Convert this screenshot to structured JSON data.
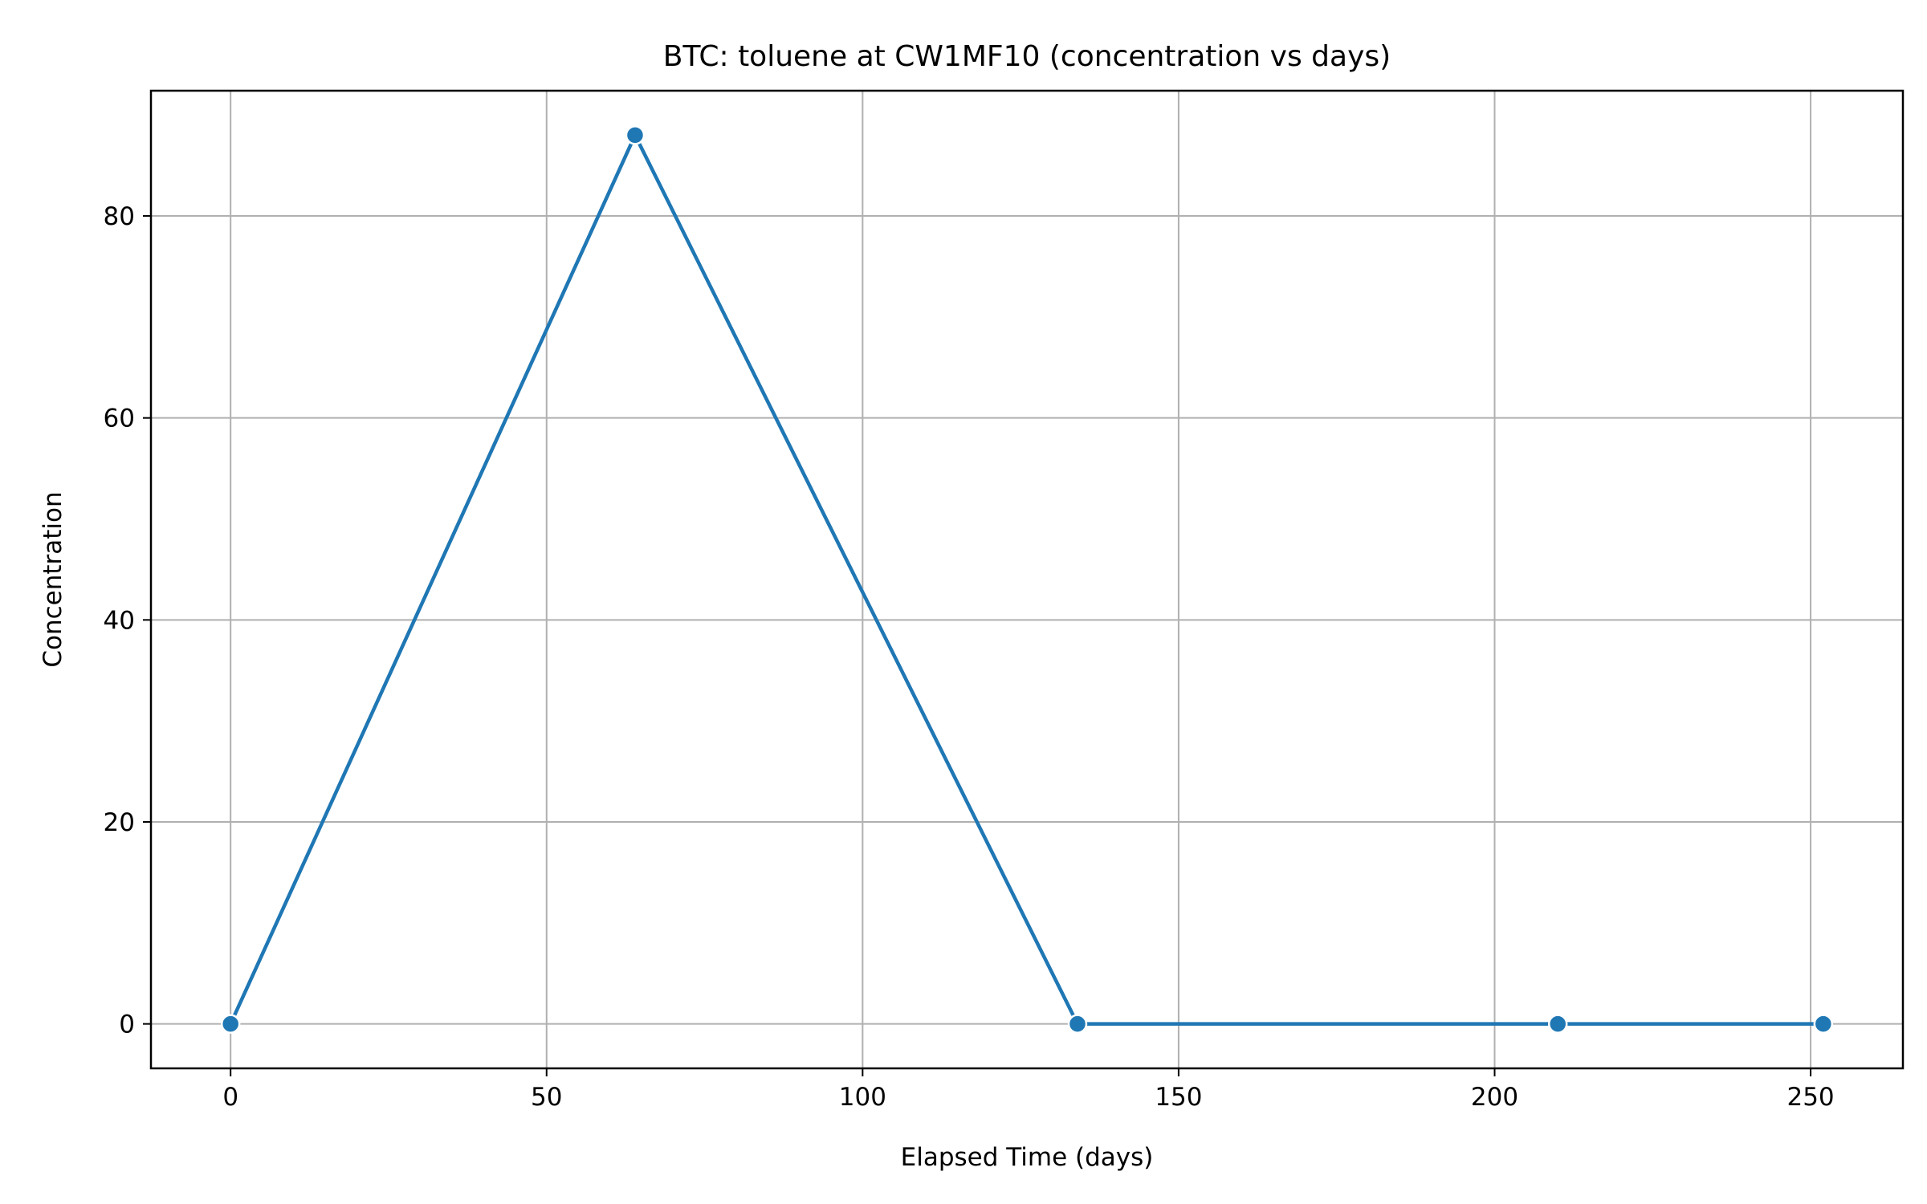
{
  "chart_data": {
    "type": "line",
    "title": "BTC: toluene at CW1MF10 (concentration vs days)",
    "xlabel": "Elapsed Time (days)",
    "ylabel": "Concentration",
    "xlim": [
      -12.6,
      264.6
    ],
    "ylim": [
      -4.4,
      92.4
    ],
    "xticks": [
      0,
      50,
      100,
      150,
      200,
      250
    ],
    "yticks": [
      0,
      20,
      40,
      60,
      80
    ],
    "grid": true,
    "series": [
      {
        "color": "#1f77b4",
        "marker": "circle",
        "x": [
          0,
          64,
          134,
          210,
          252
        ],
        "y": [
          0,
          88,
          0,
          0,
          0
        ]
      }
    ]
  }
}
